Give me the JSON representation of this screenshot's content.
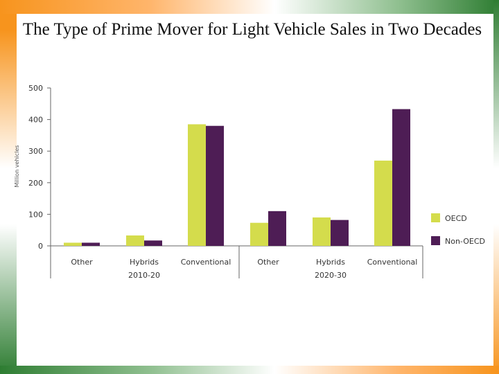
{
  "slide": {
    "title": "The Type of Prime Mover for Light Vehicle Sales in Two Decades"
  },
  "chart_data": {
    "type": "bar",
    "title": "The Type of Prime Mover for Light Vehicle Sales in Two Decades",
    "ylabel": "Million vehicles",
    "xlabel": "",
    "ylim": [
      0,
      500
    ],
    "yticks": [
      "500",
      "400",
      "300",
      "200",
      "100",
      "0"
    ],
    "groups": [
      "2010-20",
      "2020-30"
    ],
    "categories": [
      "Other",
      "Hybrids",
      "Conventional",
      "Other",
      "Hybrids",
      "Conventional"
    ],
    "series": [
      {
        "name": "OECD",
        "color": "#d4dc4c",
        "values": [
          10,
          33,
          385,
          73,
          90,
          270
        ]
      },
      {
        "name": "Non-OECD",
        "color": "#4e1d55",
        "values": [
          10,
          17,
          380,
          110,
          82,
          433
        ]
      }
    ],
    "legend": "right"
  }
}
